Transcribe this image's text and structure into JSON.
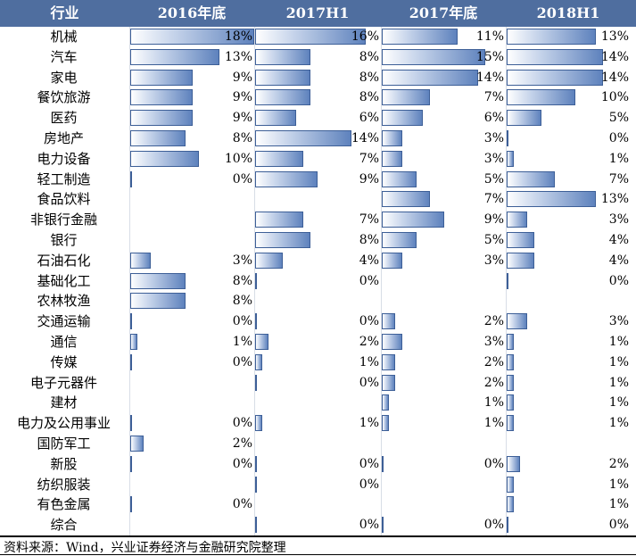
{
  "chart_data": {
    "type": "table",
    "header": [
      "行业",
      "2016年底",
      "2017H1",
      "2017年底",
      "2018H1"
    ],
    "series": [
      {
        "name": "2016年底"
      },
      {
        "name": "2017H1"
      },
      {
        "name": "2017年底"
      },
      {
        "name": "2018H1"
      }
    ],
    "unit": "%",
    "rows": [
      {
        "industry": "机械",
        "values": [
          18,
          16,
          11,
          13
        ]
      },
      {
        "industry": "汽车",
        "values": [
          13,
          8,
          15,
          14
        ]
      },
      {
        "industry": "家电",
        "values": [
          9,
          8,
          14,
          14
        ]
      },
      {
        "industry": "餐饮旅游",
        "values": [
          9,
          8,
          7,
          10
        ]
      },
      {
        "industry": "医药",
        "values": [
          9,
          6,
          6,
          5
        ]
      },
      {
        "industry": "房地产",
        "values": [
          8,
          14,
          3,
          0
        ]
      },
      {
        "industry": "电力设备",
        "values": [
          10,
          7,
          3,
          1
        ]
      },
      {
        "industry": "轻工制造",
        "values": [
          0,
          9,
          5,
          7
        ]
      },
      {
        "industry": "食品饮料",
        "values": [
          null,
          null,
          7,
          13
        ]
      },
      {
        "industry": "非银行金融",
        "values": [
          null,
          7,
          9,
          3
        ]
      },
      {
        "industry": "银行",
        "values": [
          null,
          8,
          5,
          4
        ]
      },
      {
        "industry": "石油石化",
        "values": [
          3,
          4,
          3,
          4
        ]
      },
      {
        "industry": "基础化工",
        "values": [
          8,
          0,
          null,
          0
        ]
      },
      {
        "industry": "农林牧渔",
        "values": [
          8,
          null,
          null,
          null
        ]
      },
      {
        "industry": "交通运输",
        "values": [
          0,
          0,
          2,
          3
        ]
      },
      {
        "industry": "通信",
        "values": [
          1,
          2,
          3,
          1
        ]
      },
      {
        "industry": "传媒",
        "values": [
          0,
          1,
          2,
          1
        ]
      },
      {
        "industry": "电子元器件",
        "values": [
          null,
          0,
          2,
          1
        ]
      },
      {
        "industry": "建材",
        "values": [
          null,
          null,
          1,
          1
        ]
      },
      {
        "industry": "电力及公用事业",
        "values": [
          0,
          1,
          1,
          1
        ]
      },
      {
        "industry": "国防军工",
        "values": [
          2,
          null,
          null,
          null
        ]
      },
      {
        "industry": "新股",
        "values": [
          0,
          0,
          0,
          2
        ]
      },
      {
        "industry": "纺织服装",
        "values": [
          null,
          0,
          null,
          1
        ]
      },
      {
        "industry": "有色金属",
        "values": [
          0,
          null,
          null,
          1
        ]
      },
      {
        "industry": "综合",
        "values": [
          null,
          0,
          0,
          0
        ]
      }
    ],
    "bar_color": "#5e82bd",
    "header_color": "#4f6e9f"
  },
  "footer": {
    "source": "资料来源：Wind，兴业证券经济与金融研究院整理"
  }
}
